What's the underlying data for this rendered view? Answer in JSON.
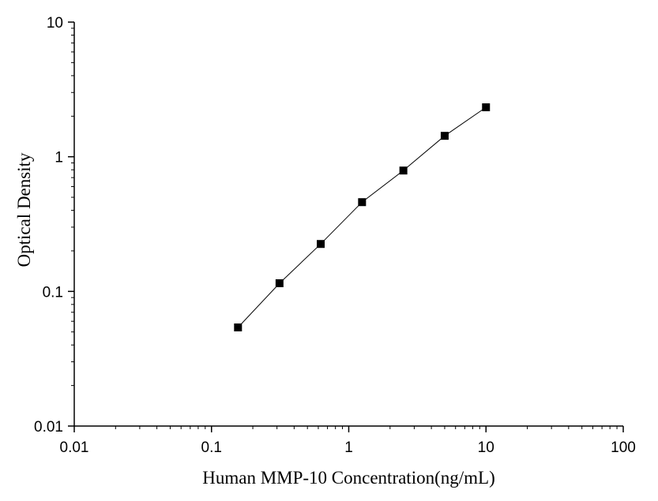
{
  "chart_data": {
    "type": "line",
    "xlabel": "Human MMP-10 Concentration(ng/mL)",
    "ylabel": "Optical Density",
    "x_scale": "log",
    "y_scale": "log",
    "xlim": [
      0.01,
      100
    ],
    "ylim": [
      0.01,
      10
    ],
    "x_ticks": [
      {
        "value": 0.01,
        "label": "0.01"
      },
      {
        "value": 0.1,
        "label": "0.1"
      },
      {
        "value": 1,
        "label": "1"
      },
      {
        "value": 10,
        "label": "10"
      },
      {
        "value": 100,
        "label": "100"
      }
    ],
    "y_ticks": [
      {
        "value": 0.01,
        "label": "0.01"
      },
      {
        "value": 0.1,
        "label": "0.1"
      },
      {
        "value": 1,
        "label": "1"
      },
      {
        "value": 10,
        "label": "10"
      }
    ],
    "grid": false,
    "legend": "none",
    "marker": "square",
    "series": [
      {
        "x": [
          0.156,
          0.313,
          0.625,
          1.25,
          2.5,
          5,
          10
        ],
        "y": [
          0.054,
          0.115,
          0.225,
          0.46,
          0.79,
          1.43,
          2.33
        ]
      }
    ],
    "colors": {
      "line": "#000000",
      "marker": "#000000",
      "axis": "#000000"
    }
  }
}
